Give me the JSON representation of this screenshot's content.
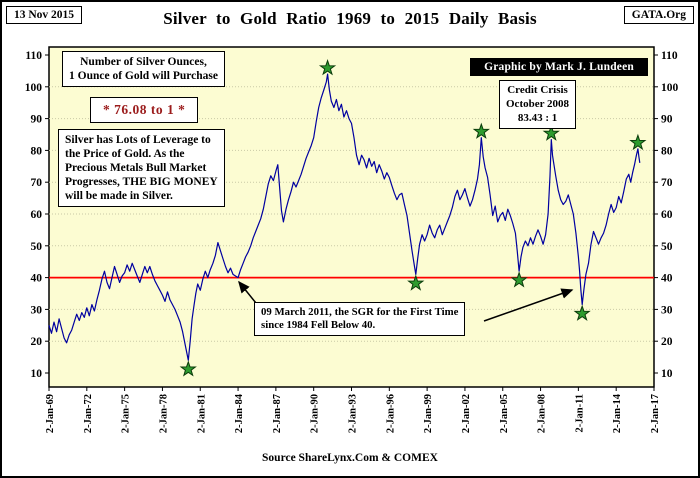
{
  "header": {
    "date": "13 Nov 2015",
    "title": "Silver to Gold Ratio 1969 to 2015 Daily Basis",
    "org": "GATA.Org"
  },
  "footer": {
    "source": "Source ShareLynx.Com & COMEX"
  },
  "annotations": {
    "ounces_lines": [
      "Number of Silver Ounces,",
      "1 Ounce of Gold will Purchase"
    ],
    "current_ratio": "* 76.08 to 1 *",
    "leverage_lines": [
      "Silver has Lots of Leverage to",
      "the Price of Gold.  As the",
      "Precious Metals Bull Market",
      "Progresses,  THE BIG MONEY",
      "will be made in Silver."
    ],
    "graphic_credit": "Graphic by Mark J. Lundeen",
    "credit_crisis_lines": [
      "Credit Crisis",
      "October 2008",
      "83.43 : 1"
    ],
    "sgr_note_lines": [
      "09 March 2011, the SGR for the First Time",
      "since 1984 Fell Below 40."
    ]
  },
  "colors": {
    "plot_bg": "#FCFCD2",
    "frame": "#000000",
    "grid": "#C9C9A6",
    "line": "#0000A0",
    "reference_line": "#FF0000",
    "star_fill": "#2E9B2E",
    "star_stroke": "#0B3B0B",
    "ratio_text": "#9B1C1C"
  },
  "chart_data": {
    "type": "line",
    "title": "Silver to Gold Ratio 1969 to 2015 Daily Basis",
    "xlabel": "",
    "ylabel": "",
    "xlim": [
      1969,
      2017
    ],
    "ylim": [
      10,
      110
    ],
    "grid": "horizontal",
    "legend": "none",
    "current_value": 76.08,
    "x_ticks": [
      "2-Jan-69",
      "2-Jan-72",
      "2-Jan-75",
      "2-Jan-78",
      "2-Jan-81",
      "2-Jan-84",
      "2-Jan-87",
      "2-Jan-90",
      "2-Jan-93",
      "2-Jan-96",
      "2-Jan-99",
      "2-Jan-02",
      "2-Jan-05",
      "2-Jan-08",
      "2-Jan-11",
      "2-Jan-14",
      "2-Jan-17"
    ],
    "y_ticks": [
      110,
      100,
      90,
      80,
      70,
      60,
      50,
      40,
      30,
      20,
      10
    ],
    "reference_line": {
      "value": 40,
      "color": "#FF0000"
    },
    "markers": [
      {
        "x": 1980.05,
        "value": 14,
        "position": "below"
      },
      {
        "x": 1991.1,
        "value": 104,
        "position": "above"
      },
      {
        "x": 1998.1,
        "value": 41,
        "position": "below"
      },
      {
        "x": 2003.3,
        "value": 84,
        "position": "above"
      },
      {
        "x": 2006.3,
        "value": 42,
        "position": "below"
      },
      {
        "x": 2008.85,
        "value": 83.43,
        "position": "above"
      },
      {
        "x": 2011.3,
        "value": 31.5,
        "position": "below"
      },
      {
        "x": 2015.72,
        "value": 80.5,
        "position": "above"
      }
    ],
    "series": [
      {
        "name": "Silver to Gold Ratio",
        "points": [
          [
            1969,
            25
          ],
          [
            1969.2,
            22.5
          ],
          [
            1969.4,
            26
          ],
          [
            1969.6,
            23
          ],
          [
            1969.8,
            27
          ],
          [
            1970,
            24
          ],
          [
            1970.2,
            21
          ],
          [
            1970.4,
            19.5
          ],
          [
            1970.6,
            22
          ],
          [
            1970.8,
            23.5
          ],
          [
            1971,
            26
          ],
          [
            1971.2,
            28.5
          ],
          [
            1971.4,
            26.5
          ],
          [
            1971.6,
            29
          ],
          [
            1971.8,
            27.5
          ],
          [
            1972,
            30.5
          ],
          [
            1972.2,
            28
          ],
          [
            1972.4,
            31.5
          ],
          [
            1972.6,
            29.5
          ],
          [
            1972.8,
            33
          ],
          [
            1973,
            36
          ],
          [
            1973.2,
            39.5
          ],
          [
            1973.4,
            42
          ],
          [
            1973.6,
            38.5
          ],
          [
            1973.8,
            36.5
          ],
          [
            1974,
            40
          ],
          [
            1974.2,
            43.5
          ],
          [
            1974.4,
            41
          ],
          [
            1974.6,
            38.5
          ],
          [
            1974.8,
            40.5
          ],
          [
            1975,
            41.5
          ],
          [
            1975.2,
            44
          ],
          [
            1975.4,
            42
          ],
          [
            1975.6,
            44.5
          ],
          [
            1975.8,
            42.5
          ],
          [
            1976,
            40.5
          ],
          [
            1976.2,
            38.5
          ],
          [
            1976.4,
            41
          ],
          [
            1976.6,
            43.5
          ],
          [
            1976.8,
            41.5
          ],
          [
            1977,
            43.5
          ],
          [
            1977.2,
            41
          ],
          [
            1977.4,
            39
          ],
          [
            1977.6,
            37.5
          ],
          [
            1977.8,
            36
          ],
          [
            1978,
            34.5
          ],
          [
            1978.2,
            32.5
          ],
          [
            1978.4,
            35.5
          ],
          [
            1978.6,
            33
          ],
          [
            1978.8,
            31.5
          ],
          [
            1979,
            30
          ],
          [
            1979.2,
            28
          ],
          [
            1979.4,
            26
          ],
          [
            1979.6,
            23
          ],
          [
            1979.8,
            19
          ],
          [
            1980.05,
            14
          ],
          [
            1980.2,
            20
          ],
          [
            1980.35,
            27
          ],
          [
            1980.5,
            31
          ],
          [
            1980.65,
            35
          ],
          [
            1980.8,
            38
          ],
          [
            1981,
            36
          ],
          [
            1981.2,
            39.5
          ],
          [
            1981.4,
            42
          ],
          [
            1981.6,
            40
          ],
          [
            1981.8,
            42.5
          ],
          [
            1982,
            44.5
          ],
          [
            1982.2,
            47
          ],
          [
            1982.4,
            51
          ],
          [
            1982.6,
            48.5
          ],
          [
            1982.8,
            46
          ],
          [
            1983,
            43.5
          ],
          [
            1983.2,
            41.5
          ],
          [
            1983.4,
            43
          ],
          [
            1983.6,
            41
          ],
          [
            1983.8,
            40.5
          ],
          [
            1984,
            40
          ],
          [
            1984.2,
            42.5
          ],
          [
            1984.4,
            44.5
          ],
          [
            1984.6,
            46.5
          ],
          [
            1984.8,
            48
          ],
          [
            1985,
            50
          ],
          [
            1985.2,
            52.5
          ],
          [
            1985.4,
            54.5
          ],
          [
            1985.6,
            56.5
          ],
          [
            1985.8,
            58.5
          ],
          [
            1986,
            61.5
          ],
          [
            1986.2,
            65.5
          ],
          [
            1986.4,
            69.5
          ],
          [
            1986.6,
            72
          ],
          [
            1986.8,
            70.5
          ],
          [
            1987,
            73.5
          ],
          [
            1987.15,
            75.5
          ],
          [
            1987.3,
            68
          ],
          [
            1987.45,
            61
          ],
          [
            1987.6,
            57.5
          ],
          [
            1987.8,
            61.5
          ],
          [
            1988,
            64.5
          ],
          [
            1988.2,
            67
          ],
          [
            1988.4,
            70
          ],
          [
            1988.6,
            68.5
          ],
          [
            1988.8,
            70.5
          ],
          [
            1989,
            72.5
          ],
          [
            1989.2,
            75
          ],
          [
            1989.4,
            77.5
          ],
          [
            1989.6,
            79.5
          ],
          [
            1989.8,
            81.5
          ],
          [
            1990,
            84
          ],
          [
            1990.2,
            89
          ],
          [
            1990.4,
            93.5
          ],
          [
            1990.6,
            96.5
          ],
          [
            1990.8,
            99
          ],
          [
            1991,
            101.5
          ],
          [
            1991.1,
            104
          ],
          [
            1991.25,
            99
          ],
          [
            1991.4,
            95.5
          ],
          [
            1991.6,
            93.5
          ],
          [
            1991.8,
            96
          ],
          [
            1992,
            92.5
          ],
          [
            1992.2,
            94.5
          ],
          [
            1992.4,
            90.5
          ],
          [
            1992.6,
            92.5
          ],
          [
            1992.8,
            90
          ],
          [
            1993,
            88.5
          ],
          [
            1993.2,
            84
          ],
          [
            1993.4,
            78.5
          ],
          [
            1993.6,
            75.5
          ],
          [
            1993.8,
            78.5
          ],
          [
            1994,
            77
          ],
          [
            1994.2,
            74.5
          ],
          [
            1994.4,
            77.5
          ],
          [
            1994.6,
            75
          ],
          [
            1994.8,
            76.5
          ],
          [
            1995,
            73
          ],
          [
            1995.2,
            75.5
          ],
          [
            1995.4,
            73.5
          ],
          [
            1995.6,
            71
          ],
          [
            1995.8,
            73
          ],
          [
            1996,
            71.5
          ],
          [
            1996.2,
            69
          ],
          [
            1996.4,
            66.5
          ],
          [
            1996.6,
            64.5
          ],
          [
            1996.8,
            66
          ],
          [
            1997,
            66.5
          ],
          [
            1997.2,
            63
          ],
          [
            1997.4,
            59.5
          ],
          [
            1997.6,
            54
          ],
          [
            1997.8,
            48.5
          ],
          [
            1998,
            43.5
          ],
          [
            1998.1,
            41
          ],
          [
            1998.25,
            46
          ],
          [
            1998.4,
            50.5
          ],
          [
            1998.6,
            53.5
          ],
          [
            1998.8,
            51.5
          ],
          [
            1999,
            53.5
          ],
          [
            1999.2,
            56.5
          ],
          [
            1999.4,
            54
          ],
          [
            1999.6,
            52.5
          ],
          [
            1999.8,
            55
          ],
          [
            2000,
            56.5
          ],
          [
            2000.2,
            53.5
          ],
          [
            2000.4,
            55.5
          ],
          [
            2000.6,
            57.5
          ],
          [
            2000.8,
            59.5
          ],
          [
            2001,
            62
          ],
          [
            2001.2,
            65.5
          ],
          [
            2001.4,
            67.5
          ],
          [
            2001.6,
            64.5
          ],
          [
            2001.8,
            66
          ],
          [
            2002,
            68
          ],
          [
            2002.2,
            65
          ],
          [
            2002.4,
            62.5
          ],
          [
            2002.6,
            64.5
          ],
          [
            2002.8,
            67.5
          ],
          [
            2003,
            71
          ],
          [
            2003.15,
            75.5
          ],
          [
            2003.3,
            84
          ],
          [
            2003.45,
            78
          ],
          [
            2003.6,
            74.5
          ],
          [
            2003.8,
            71.5
          ],
          [
            2004,
            66
          ],
          [
            2004.2,
            59.5
          ],
          [
            2004.4,
            62.5
          ],
          [
            2004.6,
            57.5
          ],
          [
            2004.8,
            59.5
          ],
          [
            2005,
            60.5
          ],
          [
            2005.2,
            58
          ],
          [
            2005.4,
            61.5
          ],
          [
            2005.6,
            59.5
          ],
          [
            2005.8,
            57
          ],
          [
            2006,
            54
          ],
          [
            2006.15,
            48.5
          ],
          [
            2006.3,
            42
          ],
          [
            2006.45,
            46.5
          ],
          [
            2006.6,
            49.5
          ],
          [
            2006.8,
            51.5
          ],
          [
            2007,
            50
          ],
          [
            2007.2,
            52.5
          ],
          [
            2007.4,
            50.5
          ],
          [
            2007.6,
            53
          ],
          [
            2007.8,
            55
          ],
          [
            2008,
            53
          ],
          [
            2008.2,
            50.5
          ],
          [
            2008.4,
            53.5
          ],
          [
            2008.6,
            60
          ],
          [
            2008.75,
            72
          ],
          [
            2008.85,
            83.4
          ],
          [
            2008.95,
            78.5
          ],
          [
            2009,
            77
          ],
          [
            2009.2,
            72
          ],
          [
            2009.4,
            67.5
          ],
          [
            2009.6,
            64.5
          ],
          [
            2009.8,
            63
          ],
          [
            2010,
            64
          ],
          [
            2010.2,
            66
          ],
          [
            2010.4,
            63
          ],
          [
            2010.6,
            60
          ],
          [
            2010.8,
            54
          ],
          [
            2011,
            46.5
          ],
          [
            2011.1,
            42
          ],
          [
            2011.2,
            36
          ],
          [
            2011.3,
            31.5
          ],
          [
            2011.45,
            36.5
          ],
          [
            2011.6,
            41
          ],
          [
            2011.8,
            44.5
          ],
          [
            2012,
            50.5
          ],
          [
            2012.2,
            54.5
          ],
          [
            2012.4,
            52.5
          ],
          [
            2012.6,
            50.5
          ],
          [
            2012.8,
            52.5
          ],
          [
            2013,
            54
          ],
          [
            2013.2,
            56.5
          ],
          [
            2013.4,
            60
          ],
          [
            2013.6,
            63
          ],
          [
            2013.8,
            60.5
          ],
          [
            2014,
            62
          ],
          [
            2014.2,
            65.5
          ],
          [
            2014.4,
            63.5
          ],
          [
            2014.6,
            67
          ],
          [
            2014.8,
            71
          ],
          [
            2015,
            72.5
          ],
          [
            2015.15,
            70
          ],
          [
            2015.3,
            73
          ],
          [
            2015.45,
            75.5
          ],
          [
            2015.6,
            78.5
          ],
          [
            2015.72,
            80.5
          ],
          [
            2015.8,
            78
          ],
          [
            2015.87,
            76.08
          ]
        ]
      }
    ]
  }
}
